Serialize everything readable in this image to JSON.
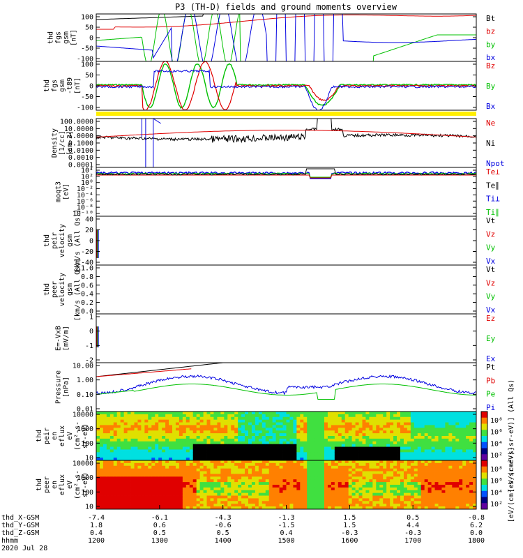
{
  "title": "P3 (TH-D) fields and ground moments overview",
  "colors": {
    "black": "#000000",
    "red": "#e00000",
    "green": "#00c000",
    "blue": "#0000e0",
    "yellow": "#ffee00"
  },
  "chart_data": {
    "type": "line",
    "panels": [
      {
        "id": "fgs-gsm",
        "ylabel": [
          "thd",
          "fgs",
          "gsm",
          "[nT]"
        ],
        "ticks": [
          "100",
          "50",
          "0",
          "-50",
          "-100"
        ],
        "ylim": [
          -100,
          100
        ],
        "legend": [
          {
            "label": "Bt",
            "color": "black"
          },
          {
            "label": "bz",
            "color": "red"
          },
          {
            "label": "by",
            "color": "green"
          },
          {
            "label": "bx",
            "color": "blue"
          }
        ]
      },
      {
        "id": "fgs-gsm-bgsub",
        "ylabel": [
          "thd",
          "fgs",
          "gsm",
          "-t89",
          "[nT]"
        ],
        "ticks": [
          "100",
          "50",
          "0",
          "-50",
          "-100"
        ],
        "ylim": [
          -120,
          110
        ],
        "legend": [
          {
            "label": "Bz",
            "color": "red"
          },
          {
            "label": "By",
            "color": "green"
          },
          {
            "label": "Bx",
            "color": "blue"
          }
        ]
      },
      {
        "id": "density",
        "ylabel": [
          "Density",
          "[1/cc]",
          "[cm-3]"
        ],
        "ticks": [
          "100.0000",
          "10.0000",
          "1.0000",
          "0.1000",
          "0.0100",
          "0.0010",
          "0.0001"
        ],
        "scale": "log",
        "ylim": [
          0.0001,
          300
        ],
        "legend": [
          {
            "label": "Ne",
            "color": "red"
          },
          {
            "label": "Ni",
            "color": "black"
          },
          {
            "label": "Npot",
            "color": "blue"
          }
        ]
      },
      {
        "id": "temperature",
        "ylabel": [
          "moqt3",
          "[eV]"
        ],
        "ticks": [
          "10⁴",
          "10²",
          "10⁰",
          "10⁻²",
          "10⁻⁴",
          "10⁻⁶",
          "10⁻⁸",
          "10⁻¹⁰"
        ],
        "scale": "log",
        "legend": [
          {
            "label": "Te⊥",
            "color": "red"
          },
          {
            "label": "Te∥",
            "color": "black"
          },
          {
            "label": "Ti⊥",
            "color": "blue"
          },
          {
            "label": "Ti∥",
            "color": "green"
          }
        ]
      },
      {
        "id": "peir-velocity",
        "ylabel": [
          "thd",
          "peir",
          "velocity",
          "gsm",
          "[km/s (All Qs)]"
        ],
        "ticks": [
          "40",
          "20",
          "0",
          "-20",
          "-40"
        ],
        "ylim": [
          -40,
          40
        ],
        "legend": [
          {
            "label": "Vt",
            "color": "black"
          },
          {
            "label": "Vz",
            "color": "red"
          },
          {
            "label": "Vy",
            "color": "green"
          },
          {
            "label": "Vx",
            "color": "blue"
          }
        ]
      },
      {
        "id": "peer-velocity",
        "ylabel": [
          "thd",
          "peer",
          "velocity",
          "gsm",
          "[km/s (All Qs)]"
        ],
        "ticks": [
          "1.0",
          "0.8",
          "0.6",
          "0.4",
          "0.2",
          "0.0"
        ],
        "ylim": [
          0,
          1
        ],
        "legend": [
          {
            "label": "Vt",
            "color": "black"
          },
          {
            "label": "Vz",
            "color": "red"
          },
          {
            "label": "Vy",
            "color": "green"
          },
          {
            "label": "Vx",
            "color": "blue"
          }
        ]
      },
      {
        "id": "efield",
        "ylabel": [
          "E=-VxB",
          "[mV/m]"
        ],
        "ticks": [
          "1",
          "0",
          "-1",
          "-2"
        ],
        "ylim": [
          -2,
          1.5
        ],
        "legend": [
          {
            "label": "Ez",
            "color": "red"
          },
          {
            "label": "Ey",
            "color": "green"
          },
          {
            "label": "Ex",
            "color": "blue"
          }
        ]
      },
      {
        "id": "pressure",
        "ylabel": [
          "Pressure",
          "[nPa]"
        ],
        "ticks": [
          "10.00",
          "1.00",
          "0.10",
          "0.01"
        ],
        "scale": "log",
        "legend": [
          {
            "label": "Pt",
            "color": "black"
          },
          {
            "label": "Pb",
            "color": "red"
          },
          {
            "label": "Pe",
            "color": "green"
          },
          {
            "label": "Pi",
            "color": "blue"
          }
        ]
      },
      {
        "id": "peir-spectrogram",
        "type": "heatmap",
        "ylabel": [
          "thd",
          "peir",
          "en",
          "eflux",
          "eV",
          "(cm²-s-",
          "sr-eV)"
        ],
        "ticks": [
          "10000",
          "1000",
          "100",
          "10"
        ],
        "colorbar": {
          "ticks": [
            "10⁸",
            "10⁶",
            "10⁴",
            "10²"
          ],
          "label": "[eV/(cm²-s-sr-eV)] (All Qs)"
        }
      },
      {
        "id": "peer-spectrogram",
        "type": "heatmap",
        "ylabel": [
          "thd",
          "peer",
          "en",
          "eflux",
          "eV",
          "(cm²-s-",
          "sr-eV)"
        ],
        "ticks": [
          "10000",
          "1000",
          "100",
          "10"
        ],
        "colorbar": {
          "ticks": [
            "10⁸",
            "10⁶",
            "10⁴",
            "10²"
          ],
          "label": "[eV/(cm²-s-sr-eV)]"
        }
      }
    ],
    "x_axis": {
      "rows": [
        {
          "label": "thd_X-GSM",
          "values": [
            "-7.4",
            "-6.1",
            "-4.3",
            "-1.3",
            "1.5",
            "0.5",
            "-0.8"
          ]
        },
        {
          "label": "thd_Y-GSM",
          "values": [
            "1.8",
            "0.6",
            "-0.6",
            "-1.5",
            "1.5",
            "4.4",
            "6.2"
          ]
        },
        {
          "label": "thd_Z-GSM",
          "values": [
            "0.4",
            "0.5",
            "0.5",
            "0.4",
            "-0.3",
            "-0.3",
            "0.0"
          ]
        },
        {
          "label": "hhmm",
          "values": [
            "1200",
            "1300",
            "1400",
            "1500",
            "1600",
            "1700",
            "1800"
          ]
        }
      ],
      "date": "2020 Jul 28"
    }
  }
}
